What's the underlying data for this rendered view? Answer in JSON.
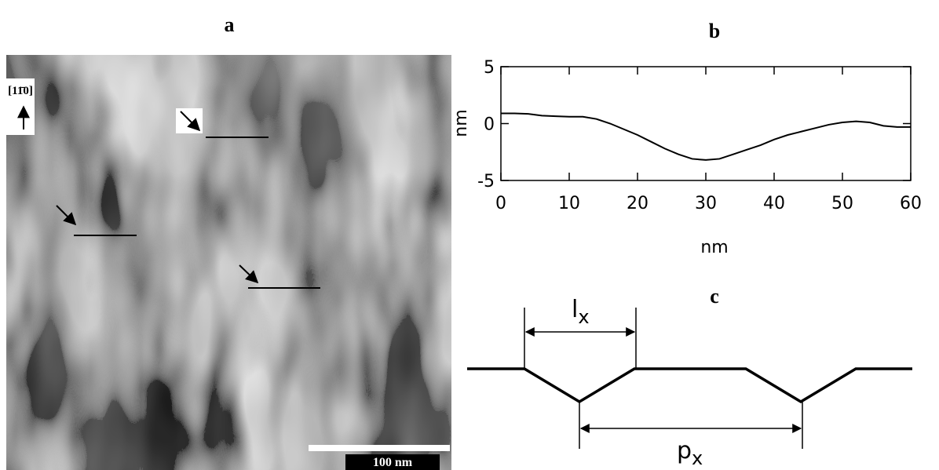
{
  "image_panel": {
    "panel_label": "a",
    "direction": "[11̄0]",
    "scale_bar": "100 nm"
  },
  "chart_data": {
    "type": "line",
    "panel_label": "b",
    "xlabel": "nm",
    "ylabel": "nm",
    "x": [
      0,
      2,
      4,
      6,
      8,
      10,
      12,
      14,
      16,
      18,
      20,
      22,
      24,
      26,
      28,
      30,
      32,
      34,
      36,
      38,
      40,
      42,
      44,
      46,
      48,
      50,
      52,
      54,
      56,
      58,
      60
    ],
    "y": [
      0.9,
      0.9,
      0.85,
      0.7,
      0.65,
      0.6,
      0.6,
      0.4,
      0.0,
      -0.5,
      -1.0,
      -1.6,
      -2.2,
      -2.7,
      -3.1,
      -3.2,
      -3.1,
      -2.7,
      -2.3,
      -1.9,
      -1.4,
      -1.0,
      -0.7,
      -0.4,
      -0.1,
      0.1,
      0.2,
      0.1,
      -0.2,
      -0.3,
      -0.3
    ],
    "color": "#000000",
    "xlim": [
      0,
      60
    ],
    "ylim": [
      -5,
      5
    ],
    "xticks": [
      0,
      10,
      20,
      30,
      40,
      50,
      60
    ],
    "yticks": [
      -5,
      0,
      5
    ]
  },
  "diagram_panel": {
    "panel_label": "c",
    "lx": {
      "symbol": "l",
      "subscript": "x"
    },
    "px": {
      "symbol": "p",
      "subscript": "x"
    }
  }
}
